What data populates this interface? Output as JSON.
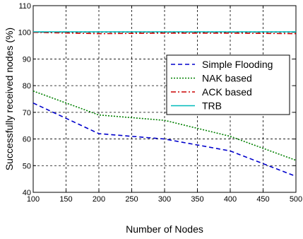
{
  "chart_data": {
    "type": "line",
    "xlabel": "Number of Nodes",
    "ylabel": "Successfully received nodes (%)",
    "xlim": [
      100,
      500
    ],
    "ylim": [
      40,
      110
    ],
    "xticks": [
      "100",
      "150",
      "200",
      "250",
      "300",
      "350",
      "400",
      "450",
      "500"
    ],
    "yticks": [
      "40",
      "50",
      "60",
      "70",
      "80",
      "90",
      "100",
      "110"
    ],
    "grid": true,
    "legend_position": "right",
    "x": [
      100,
      200,
      300,
      400,
      500
    ],
    "series": [
      {
        "name": "Simple Flooding",
        "color": "#0000cc",
        "style": "dashed",
        "values": [
          73.5,
          62,
          60,
          55.5,
          46
        ]
      },
      {
        "name": "NAK based",
        "color": "#008000",
        "style": "dotted",
        "values": [
          78,
          69,
          67,
          61,
          52
        ]
      },
      {
        "name": "ACK based",
        "color": "#cc0000",
        "style": "dashdot",
        "values": [
          100,
          99.5,
          99.7,
          99.7,
          99.5
        ]
      },
      {
        "name": "TRB",
        "color": "#00bbbb",
        "style": "solid",
        "values": [
          100.2,
          100.2,
          100.2,
          100.2,
          100.2
        ]
      }
    ]
  }
}
